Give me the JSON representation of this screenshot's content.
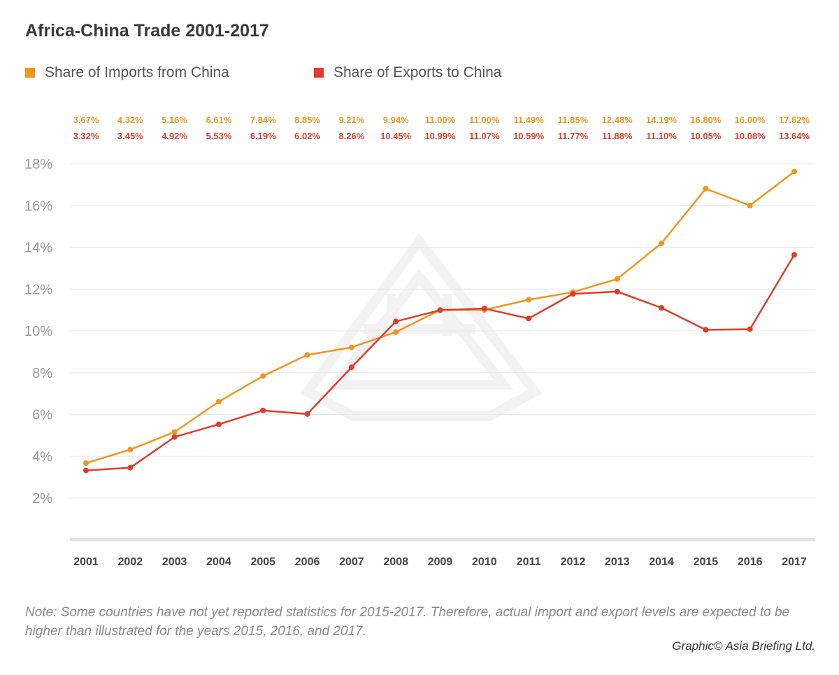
{
  "colors": {
    "imports": "#f0961e",
    "exports": "#e03c2c",
    "grid": "#e8e8e8",
    "axis_text": "#9a9a9a",
    "year_text": "#444444"
  },
  "chart_data": {
    "type": "line",
    "title": "Africa-China Trade 2001-2017",
    "x": [
      "2001",
      "2002",
      "2003",
      "2004",
      "2005",
      "2006",
      "2007",
      "2008",
      "2009",
      "2010",
      "2011",
      "2012",
      "2013",
      "2014",
      "2015",
      "2016",
      "2017"
    ],
    "series": [
      {
        "name": "Share of Imports from China",
        "values": [
          3.67,
          4.32,
          5.16,
          6.61,
          7.84,
          8.85,
          9.21,
          9.94,
          11.0,
          11.0,
          11.49,
          11.85,
          12.48,
          14.19,
          16.8,
          16.0,
          17.62
        ],
        "labels": [
          "3.67%",
          "4.32%",
          "5.16%",
          "6.61%",
          "7.84%",
          "8.85%",
          "9.21%",
          "9.94%",
          "11.00%",
          "11.00%",
          "11.49%",
          "11.85%",
          "12.48%",
          "14.19%",
          "16.80%",
          "16.00%",
          "17.62%"
        ]
      },
      {
        "name": "Share of Exports to China",
        "values": [
          3.32,
          3.45,
          4.92,
          5.53,
          6.19,
          6.02,
          8.26,
          10.45,
          10.99,
          11.07,
          10.59,
          11.77,
          11.88,
          11.1,
          10.05,
          10.08,
          13.64
        ],
        "labels": [
          "3.32%",
          "3.45%",
          "4.92%",
          "5.53%",
          "6.19%",
          "6.02%",
          "8.26%",
          "10.45%",
          "10.99%",
          "11.07%",
          "10.59%",
          "11.77%",
          "11.88%",
          "11.10%",
          "10.05%",
          "10.08%",
          "13.64%"
        ]
      }
    ],
    "yticks": [
      2,
      4,
      6,
      8,
      10,
      12,
      14,
      16,
      18
    ],
    "ytick_labels": [
      "2%",
      "4%",
      "6%",
      "8%",
      "10%",
      "12%",
      "14%",
      "16%",
      "18%"
    ],
    "ylim": [
      0,
      18.6
    ],
    "grid": true,
    "legend_position": "top-left"
  },
  "note": "Note: Some countries have not yet reported statistics for 2015-2017. Therefore, actual import and export levels are expected to be higher than illustrated for the years 2015, 2016, and 2017.",
  "credit": "Graphic© Asia Briefing Ltd."
}
